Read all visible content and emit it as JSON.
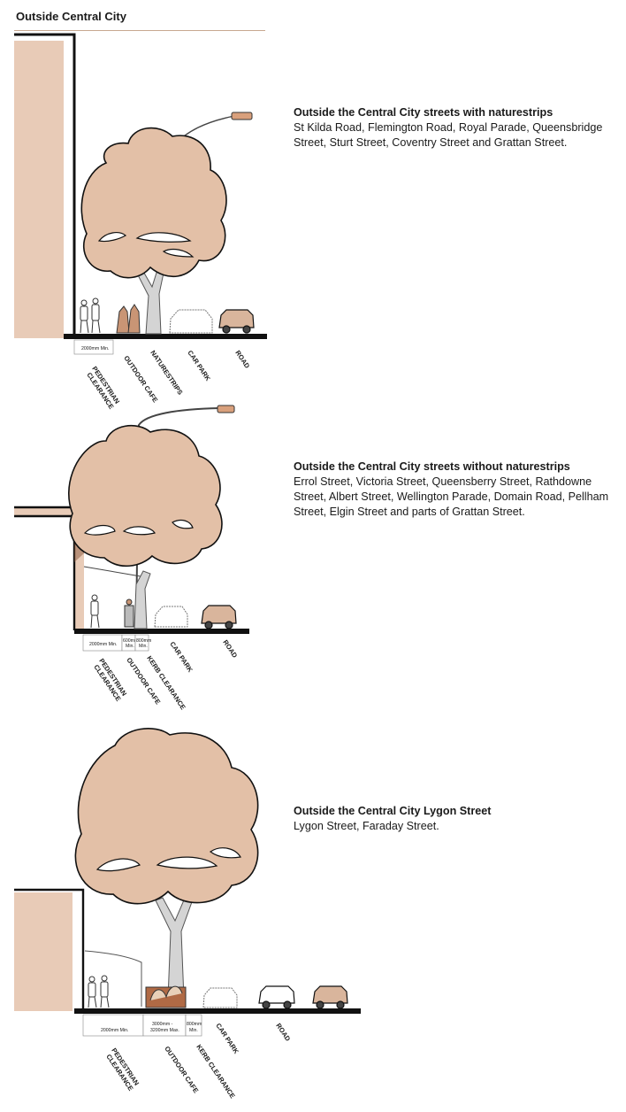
{
  "header": {
    "title": "Outside Central City"
  },
  "colors": {
    "tree": "#e3c0a7",
    "wall": "#e8cbb7",
    "trunk": "#d4d4d4",
    "car": "#d9b59c",
    "ink": "#111111"
  },
  "sections": [
    {
      "title": "Outside the Central City streets with naturestrips",
      "body": "St Kilda Road, Flemington Road, Royal Parade, Queensbridge Street, Sturt Street, Coventry Street and Grattan Street.",
      "dims": [
        "2000mm Min."
      ],
      "labels": [
        "PEDESTRIAN",
        "CLEARANCE",
        "OUTDOOR CAFE",
        "NATURESTRIPS",
        "CAR PARK",
        "ROAD"
      ]
    },
    {
      "title": "Outside the Central City streets without naturestrips",
      "body": "Errol Street, Victoria Street, Queensberry Street, Rathdowne Street, Albert Street, Wellington Parade, Domain Road, Pellham Street, Elgin Street and parts of Grattan Street.",
      "dims": [
        "2000mm Min.",
        "600mm",
        "Min.",
        "800mm",
        "Min."
      ],
      "labels": [
        "PEDESTRIAN",
        "CLEARANCE",
        "OUTDOOR CAFE",
        "KERB CLEARANCE",
        "CAR PARK",
        "ROAD"
      ]
    },
    {
      "title": "Outside the Central City Lygon Street",
      "body": "Lygon Street, Faraday Street.",
      "dims": [
        "2000mm Min.",
        "3000mm -",
        "3200mm Max.",
        "800mm",
        "Min."
      ],
      "labels": [
        "PEDESTRIAN",
        "CLEARANCE",
        "OUTDOOR CAFE",
        "KERB CLEARANCE",
        "CAR PARK",
        "ROAD"
      ]
    }
  ]
}
